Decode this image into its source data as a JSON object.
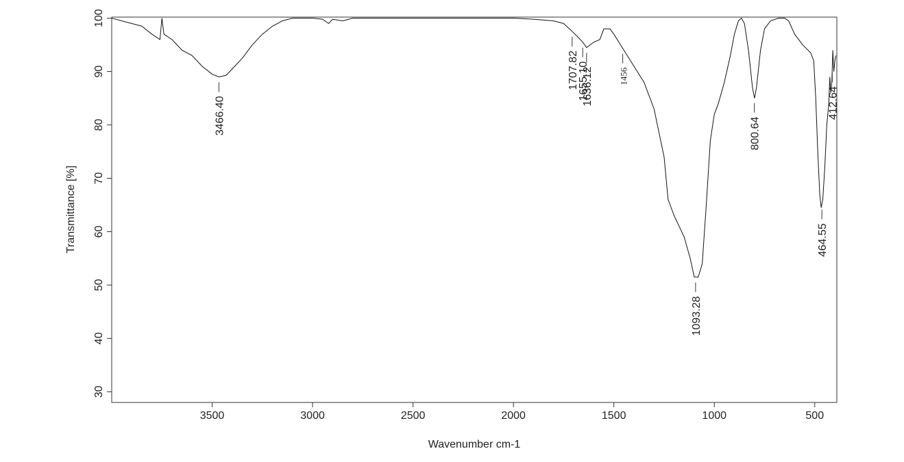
{
  "chart_data": {
    "type": "line",
    "x_label": "Wavenumber cm-1",
    "y_label": "Transmittance [%]",
    "xlim": [
      4000,
      390
    ],
    "ylim": [
      28,
      100.2
    ],
    "xticks": [
      3500,
      3000,
      2500,
      2000,
      1500,
      1000,
      500
    ],
    "yticks": [
      30,
      40,
      50,
      60,
      70,
      80,
      90,
      100
    ],
    "series": [
      {
        "color": "#111111",
        "x": [
          4000,
          3950,
          3900,
          3850,
          3800,
          3760,
          3750,
          3740,
          3700,
          3650,
          3600,
          3550,
          3500,
          3466,
          3430,
          3400,
          3350,
          3300,
          3250,
          3200,
          3150,
          3100,
          3000,
          2950,
          2920,
          2900,
          2850,
          2800,
          2000,
          1900,
          1800,
          1750,
          1707,
          1680,
          1655,
          1636,
          1600,
          1570,
          1550,
          1520,
          1500,
          1450,
          1400,
          1350,
          1300,
          1250,
          1230,
          1200,
          1150,
          1120,
          1100,
          1080,
          1060,
          1040,
          1020,
          1000,
          980,
          950,
          920,
          900,
          880,
          865,
          850,
          830,
          810,
          800,
          790,
          770,
          750,
          720,
          680,
          650,
          630,
          600,
          560,
          520,
          505,
          495,
          485,
          475,
          468,
          460,
          450,
          440,
          430,
          425,
          420,
          415,
          410,
          405,
          400,
          395
        ],
        "values": [
          100,
          99.5,
          99,
          98.5,
          97,
          96,
          100,
          97,
          96,
          94,
          93,
          91,
          89.5,
          89,
          89.3,
          90.5,
          92.5,
          95,
          97,
          98.5,
          99.5,
          100,
          100,
          99.8,
          99,
          99.8,
          99.5,
          100,
          100,
          99.8,
          99.5,
          99,
          97.5,
          96.5,
          95.5,
          94.5,
          95.5,
          96,
          98,
          98,
          97,
          94,
          91,
          88,
          83,
          74,
          66,
          63,
          59,
          55,
          51.5,
          51.5,
          54,
          65,
          77,
          82,
          84,
          88,
          93,
          97,
          99.5,
          100,
          99,
          94,
          87,
          85,
          87,
          94,
          98,
          99.5,
          100,
          100,
          99.5,
          97,
          95,
          93.5,
          92,
          85,
          75,
          67,
          64.5,
          66,
          72,
          80,
          84,
          89,
          86,
          88,
          94,
          90,
          92,
          93
        ]
      }
    ],
    "annotations": [
      {
        "x": 3466.4,
        "label": "3466.40"
      },
      {
        "x": 1707.82,
        "label": "1707.82"
      },
      {
        "x": 1655.1,
        "label": "1655.10"
      },
      {
        "x": 1636.12,
        "label": "1636.12"
      },
      {
        "x": 1456,
        "label": "1456"
      },
      {
        "x": 1093.28,
        "label": "1093.28"
      },
      {
        "x": 800.64,
        "label": "800.64"
      },
      {
        "x": 464.55,
        "label": "464.55"
      },
      {
        "x": 412.64,
        "label": "412.64"
      }
    ]
  }
}
